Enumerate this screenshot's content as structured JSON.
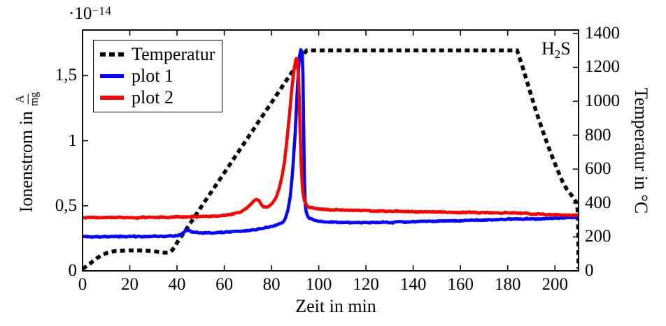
{
  "figure_colors": {
    "plot1": "#0707f0",
    "plot2": "#f00707",
    "temperature": "#000000",
    "frame": "#000000",
    "background": "#ffffff"
  },
  "annotations": {
    "exponent_prefix": "·10",
    "exponent_sup": "−14",
    "gas_base": "H",
    "gas_sub": "2",
    "gas_tail": "S"
  },
  "legend": {
    "items": [
      {
        "label": "Temperatur",
        "swatch": "black-dashed-line"
      },
      {
        "label": "plot 1",
        "swatch": "blue-solid-line"
      },
      {
        "label": "plot 2",
        "swatch": "red-solid-line"
      }
    ]
  },
  "axes": {
    "x": {
      "title": "Zeit in min",
      "tick_labels": [
        "0",
        "20",
        "40",
        "60",
        "80",
        "100",
        "120",
        "140",
        "160",
        "180",
        "200"
      ],
      "tick_values": [
        0,
        20,
        40,
        60,
        80,
        100,
        120,
        140,
        160,
        180,
        200
      ]
    },
    "y_left": {
      "title_prefix": "Ionenstrom in",
      "unit_numerator": "A",
      "unit_denominator": "mg",
      "scale_factor": "·10−14",
      "tick_labels": [
        "0",
        "0,5",
        "1",
        "1,5"
      ],
      "tick_values": [
        0,
        0.5,
        1,
        1.5
      ]
    },
    "y_right": {
      "title": "Temperatur in °C",
      "tick_labels": [
        "0",
        "200",
        "400",
        "600",
        "800",
        "1000",
        "1200",
        "1400"
      ],
      "tick_values": [
        0,
        200,
        400,
        600,
        800,
        1000,
        1200,
        1400
      ]
    }
  },
  "chart_data": {
    "type": "line",
    "title": "",
    "xlabel": "Zeit in min",
    "ylabel_left": "Ionenstrom in A/mg (×10⁻¹⁴)",
    "ylabel_right": "Temperatur in °C",
    "annotation": "H2S",
    "legend_position": "top-left-inside",
    "grid": false,
    "xlim": [
      0,
      210
    ],
    "ylim_left": [
      0,
      1.85
    ],
    "ylim_right": [
      0,
      1420
    ],
    "series": [
      {
        "name": "Temperatur",
        "axis": "right",
        "style": "dashed",
        "color": "#000000",
        "noise": 0,
        "points": [
          [
            0,
            12
          ],
          [
            2,
            30
          ],
          [
            4,
            52
          ],
          [
            6,
            74
          ],
          [
            8,
            92
          ],
          [
            10,
            104
          ],
          [
            12,
            112
          ],
          [
            14,
            117
          ],
          [
            17,
            119
          ],
          [
            20,
            120
          ],
          [
            24,
            120
          ],
          [
            28,
            118
          ],
          [
            31,
            114
          ],
          [
            33,
            110
          ],
          [
            35,
            107
          ],
          [
            36.5,
            108
          ],
          [
            38,
            122
          ],
          [
            40,
            165
          ],
          [
            45,
            268
          ],
          [
            50,
            372
          ],
          [
            55,
            475
          ],
          [
            60,
            578
          ],
          [
            65,
            682
          ],
          [
            70,
            785
          ],
          [
            75,
            889
          ],
          [
            80,
            992
          ],
          [
            85,
            1096
          ],
          [
            90,
            1199
          ],
          [
            93,
            1261
          ],
          [
            94.8,
            1300
          ],
          [
            110,
            1300
          ],
          [
            130,
            1300
          ],
          [
            150,
            1300
          ],
          [
            170,
            1300
          ],
          [
            184,
            1300
          ],
          [
            186,
            1215
          ],
          [
            189,
            1078
          ],
          [
            192,
            942
          ],
          [
            195,
            818
          ],
          [
            198,
            702
          ],
          [
            201,
            598
          ],
          [
            203,
            532
          ],
          [
            205,
            482
          ],
          [
            207,
            446
          ],
          [
            208.5,
            416
          ],
          [
            209.3,
            402
          ],
          [
            209.8,
            330
          ],
          [
            210,
            12
          ]
        ]
      },
      {
        "name": "plot 1",
        "axis": "left",
        "style": "solid",
        "color": "#0707f0",
        "noise": 0.006,
        "seed": 41,
        "points": [
          [
            0,
            0.262
          ],
          [
            5,
            0.263
          ],
          [
            10,
            0.262
          ],
          [
            15,
            0.264
          ],
          [
            20,
            0.263
          ],
          [
            25,
            0.265
          ],
          [
            30,
            0.264
          ],
          [
            35,
            0.266
          ],
          [
            40,
            0.27
          ],
          [
            42,
            0.285
          ],
          [
            44,
            0.315
          ],
          [
            45,
            0.312
          ],
          [
            46,
            0.3
          ],
          [
            48,
            0.295
          ],
          [
            50,
            0.292
          ],
          [
            53,
            0.29
          ],
          [
            56,
            0.292
          ],
          [
            60,
            0.296
          ],
          [
            64,
            0.3
          ],
          [
            68,
            0.305
          ],
          [
            72,
            0.315
          ],
          [
            76,
            0.325
          ],
          [
            80,
            0.34
          ],
          [
            82,
            0.35
          ],
          [
            84,
            0.365
          ],
          [
            85,
            0.38
          ],
          [
            86,
            0.41
          ],
          [
            87,
            0.47
          ],
          [
            88,
            0.58
          ],
          [
            89,
            0.78
          ],
          [
            90,
            1.05
          ],
          [
            91,
            1.42
          ],
          [
            91.8,
            1.64
          ],
          [
            92.4,
            1.7
          ],
          [
            93,
            1.68
          ],
          [
            93.4,
            1.45
          ],
          [
            93.7,
            0.95
          ],
          [
            94,
            0.62
          ],
          [
            94.5,
            0.47
          ],
          [
            95,
            0.43
          ],
          [
            96,
            0.405
          ],
          [
            98,
            0.39
          ],
          [
            100,
            0.38
          ],
          [
            105,
            0.374
          ],
          [
            110,
            0.371
          ],
          [
            115,
            0.37
          ],
          [
            120,
            0.371
          ],
          [
            130,
            0.374
          ],
          [
            140,
            0.377
          ],
          [
            150,
            0.381
          ],
          [
            160,
            0.386
          ],
          [
            170,
            0.391
          ],
          [
            180,
            0.396
          ],
          [
            190,
            0.4
          ],
          [
            200,
            0.404
          ],
          [
            210,
            0.41
          ]
        ]
      },
      {
        "name": "plot 2",
        "axis": "left",
        "style": "solid",
        "color": "#f00707",
        "noise": 0.006,
        "seed": 97,
        "points": [
          [
            0,
            0.408
          ],
          [
            5,
            0.41
          ],
          [
            10,
            0.409
          ],
          [
            15,
            0.411
          ],
          [
            20,
            0.41
          ],
          [
            25,
            0.409
          ],
          [
            30,
            0.411
          ],
          [
            35,
            0.412
          ],
          [
            40,
            0.413
          ],
          [
            45,
            0.415
          ],
          [
            50,
            0.416
          ],
          [
            55,
            0.419
          ],
          [
            58,
            0.423
          ],
          [
            61,
            0.43
          ],
          [
            64,
            0.44
          ],
          [
            67,
            0.455
          ],
          [
            69,
            0.475
          ],
          [
            71,
            0.51
          ],
          [
            72.5,
            0.54
          ],
          [
            73.5,
            0.552
          ],
          [
            74.5,
            0.54
          ],
          [
            75.5,
            0.515
          ],
          [
            76.5,
            0.495
          ],
          [
            77.5,
            0.487
          ],
          [
            78.5,
            0.49
          ],
          [
            79.5,
            0.505
          ],
          [
            80.5,
            0.525
          ],
          [
            81.5,
            0.55
          ],
          [
            82.5,
            0.59
          ],
          [
            83.5,
            0.65
          ],
          [
            84.5,
            0.73
          ],
          [
            85.5,
            0.84
          ],
          [
            86.5,
            1.0
          ],
          [
            87.5,
            1.18
          ],
          [
            88.5,
            1.38
          ],
          [
            89.5,
            1.54
          ],
          [
            90.3,
            1.62
          ],
          [
            90.8,
            1.63
          ],
          [
            91.3,
            1.55
          ],
          [
            91.8,
            1.3
          ],
          [
            92.3,
            0.95
          ],
          [
            92.8,
            0.72
          ],
          [
            93.3,
            0.6
          ],
          [
            94,
            0.535
          ],
          [
            95,
            0.5
          ],
          [
            96,
            0.487
          ],
          [
            98,
            0.48
          ],
          [
            100,
            0.476
          ],
          [
            105,
            0.471
          ],
          [
            110,
            0.468
          ],
          [
            120,
            0.462
          ],
          [
            130,
            0.458
          ],
          [
            140,
            0.455
          ],
          [
            150,
            0.452
          ],
          [
            160,
            0.449
          ],
          [
            170,
            0.447
          ],
          [
            180,
            0.446
          ],
          [
            185,
            0.442
          ],
          [
            190,
            0.438
          ],
          [
            195,
            0.434
          ],
          [
            200,
            0.431
          ],
          [
            205,
            0.429
          ],
          [
            210,
            0.428
          ]
        ]
      }
    ]
  }
}
